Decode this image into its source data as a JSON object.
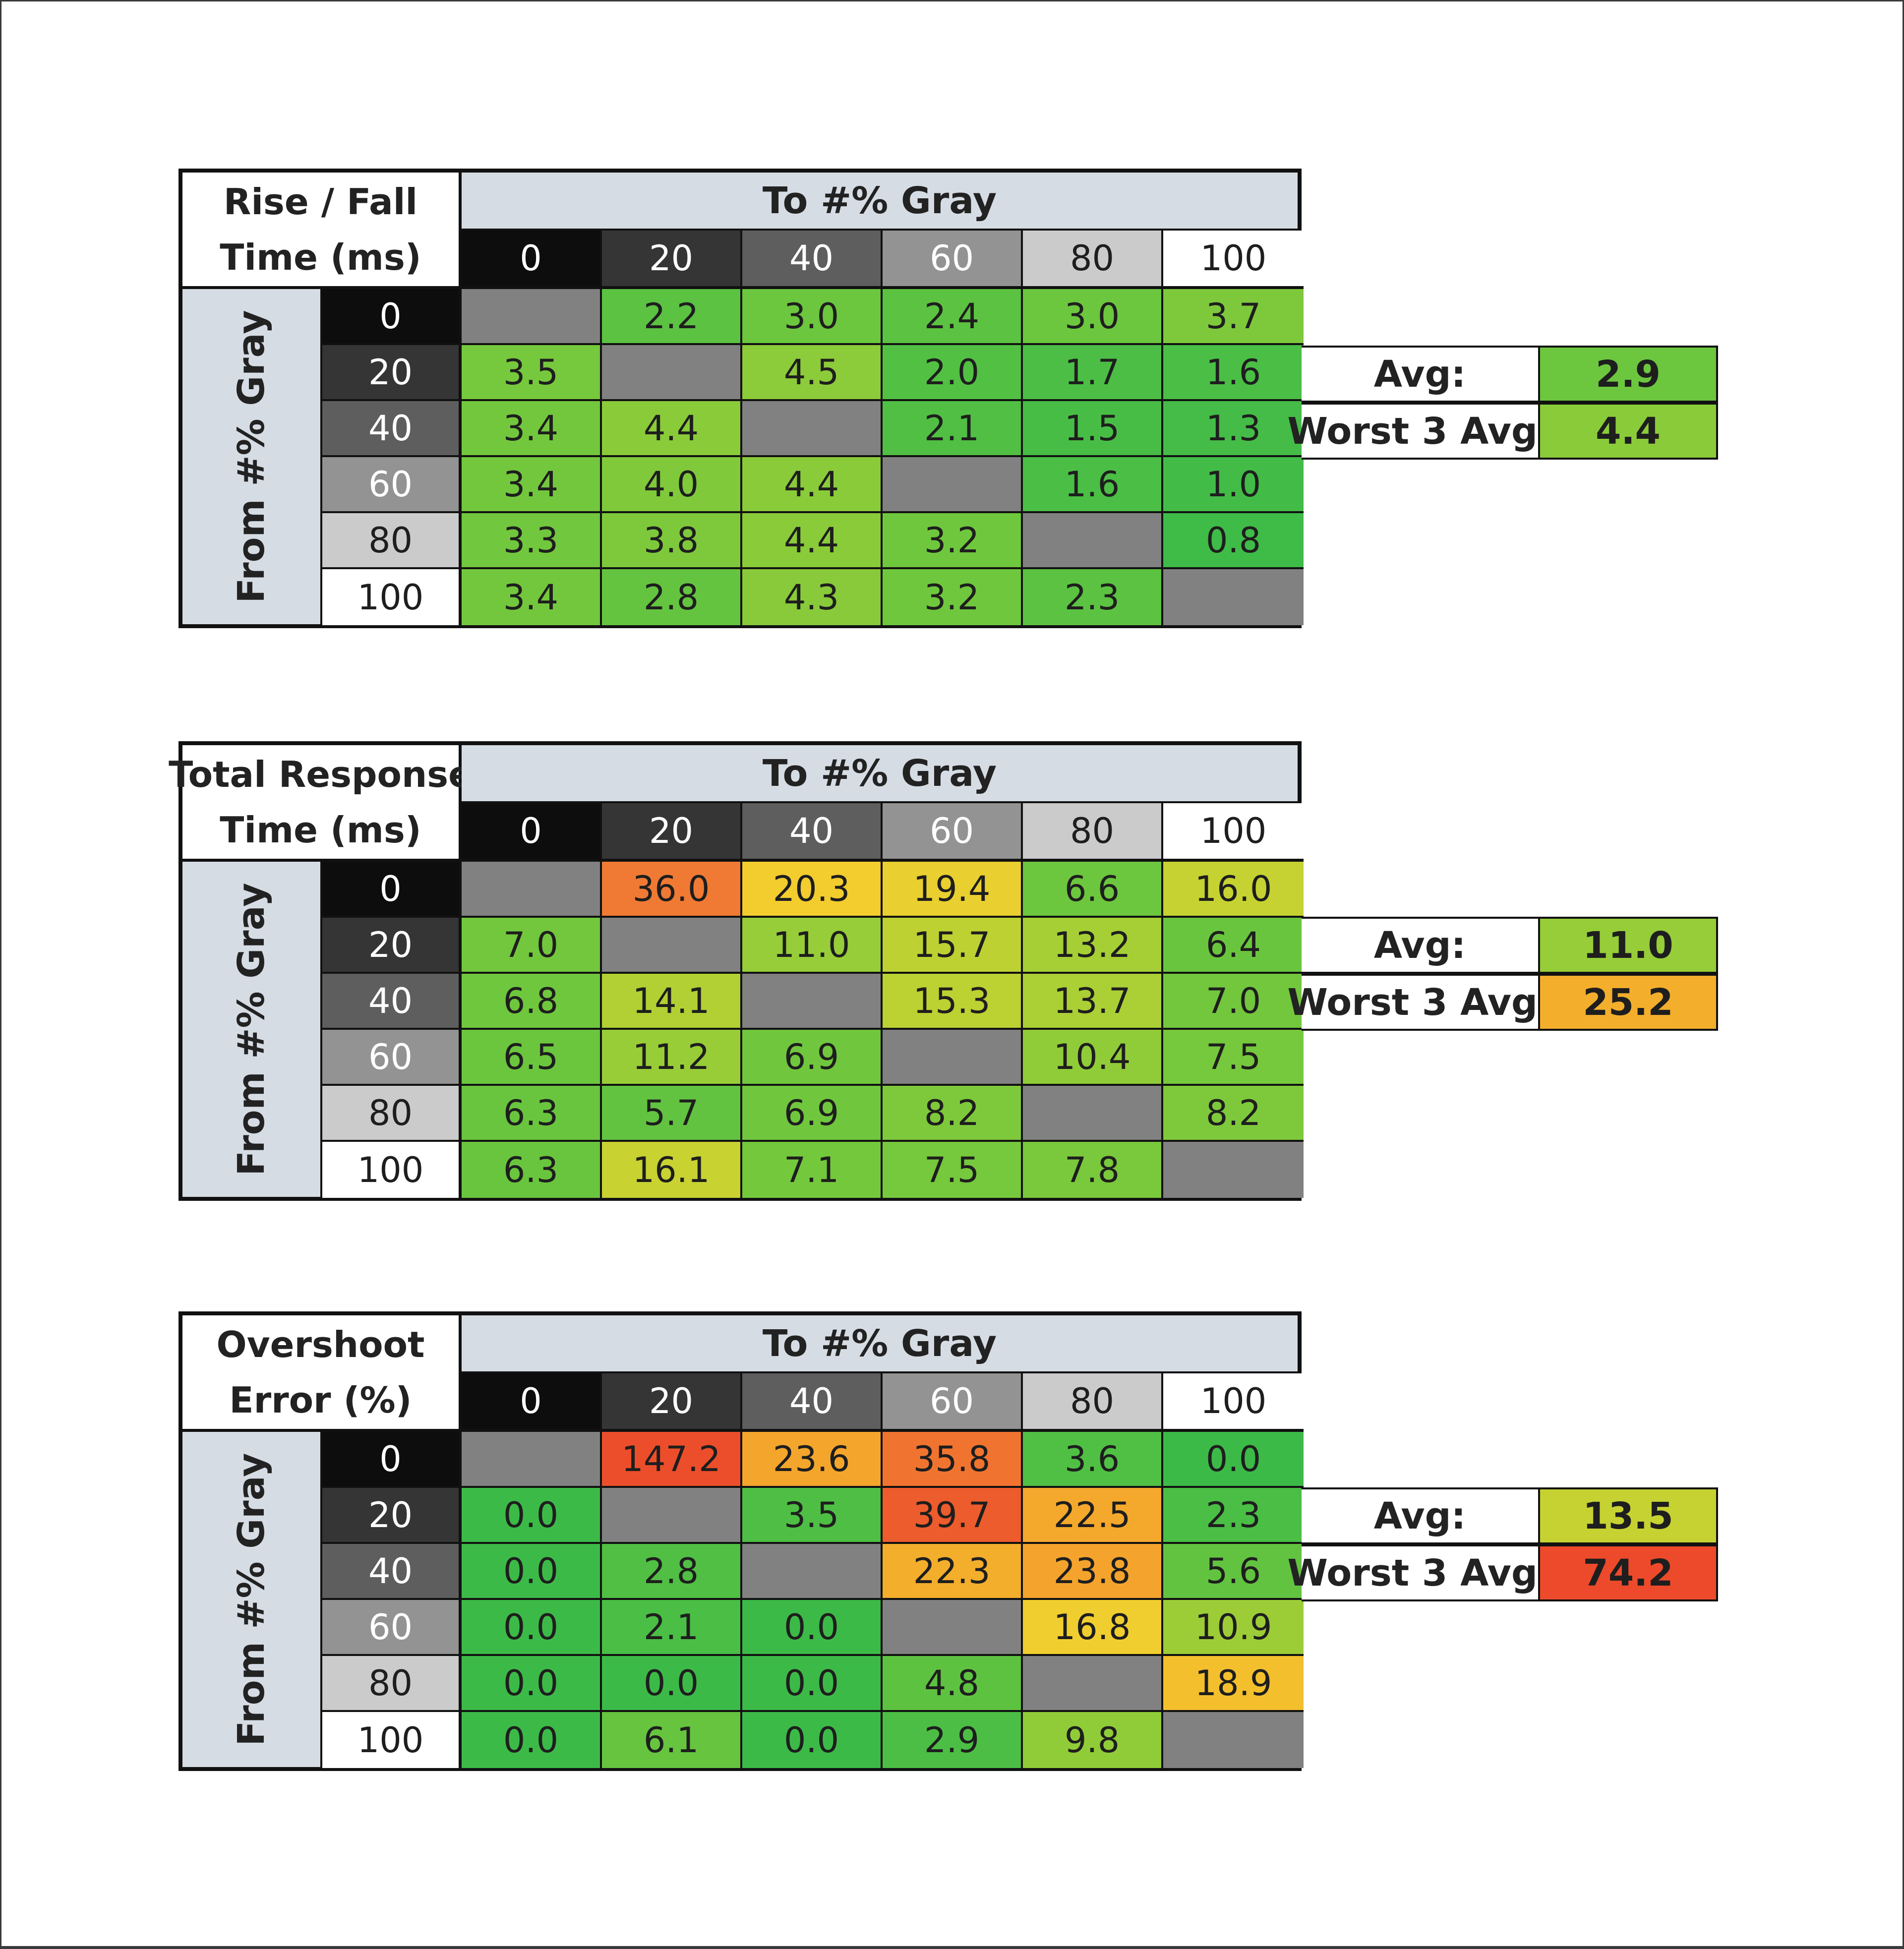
{
  "chart_data": [
    {
      "type": "heatmap",
      "title_lines": [
        "Rise / Fall",
        "Time (ms)"
      ],
      "x_title": "To #% Gray",
      "y_title": "From #% Gray",
      "levels": [
        "0",
        "20",
        "40",
        "60",
        "80",
        "100"
      ],
      "values": [
        [
          null,
          "2.2",
          "3.0",
          "2.4",
          "3.0",
          "3.7"
        ],
        [
          "3.5",
          null,
          "4.5",
          "2.0",
          "1.7",
          "1.6"
        ],
        [
          "3.4",
          "4.4",
          null,
          "2.1",
          "1.5",
          "1.3"
        ],
        [
          "3.4",
          "4.0",
          "4.4",
          null,
          "1.6",
          "1.0"
        ],
        [
          "3.3",
          "3.8",
          "4.4",
          "3.2",
          null,
          "0.8"
        ],
        [
          "3.4",
          "2.8",
          "4.3",
          "3.2",
          "2.3",
          null
        ]
      ],
      "colors": [
        [
          null,
          "#5bc242",
          "#6cc63e",
          "#5cc241",
          "#6cc63e",
          "#7dc93b"
        ],
        [
          "#76c83c",
          null,
          "#8ccb39",
          "#52c043",
          "#4cbe45",
          "#4abe45"
        ],
        [
          "#73c73d",
          "#8acb39",
          null,
          "#50bf44",
          "#48bd46",
          "#44bc47"
        ],
        [
          "#73c73d",
          "#80c93b",
          "#8acb39",
          null,
          "#4abe45",
          "#42bc47"
        ],
        [
          "#71c73d",
          "#7dc93b",
          "#8acb39",
          "#6fc73d",
          null,
          "#3fbb48"
        ],
        [
          "#73c73d",
          "#64c440",
          "#88ca3a",
          "#6fc73d",
          "#5cc241",
          null
        ]
      ],
      "stats": [
        {
          "label": "Avg:",
          "value": "2.9",
          "color": "#6cc63e"
        },
        {
          "label": "Worst 3 Avg:",
          "value": "4.4",
          "color": "#8acb39"
        }
      ]
    },
    {
      "type": "heatmap",
      "title_lines": [
        "Total Response",
        "Time (ms)"
      ],
      "x_title": "To #% Gray",
      "y_title": "From #% Gray",
      "levels": [
        "0",
        "20",
        "40",
        "60",
        "80",
        "100"
      ],
      "values": [
        [
          null,
          "36.0",
          "20.3",
          "19.4",
          "6.6",
          "16.0"
        ],
        [
          "7.0",
          null,
          "11.0",
          "15.7",
          "13.2",
          "6.4"
        ],
        [
          "6.8",
          "14.1",
          null,
          "15.3",
          "13.7",
          "7.0"
        ],
        [
          "6.5",
          "11.2",
          "6.9",
          null,
          "10.4",
          "7.5"
        ],
        [
          "6.3",
          "5.7",
          "6.9",
          "8.2",
          null,
          "8.2"
        ],
        [
          "6.3",
          "16.1",
          "7.1",
          "7.5",
          "7.8",
          null
        ]
      ],
      "colors": [
        [
          null,
          "#f07a33",
          "#f3cc2e",
          "#e9cf2f",
          "#6cc63e",
          "#c6d231"
        ],
        [
          "#72c73d",
          null,
          "#96cd38",
          "#bdd132",
          "#a6cf35",
          "#6ac53e"
        ],
        [
          "#6fc73d",
          "#b2d033",
          null,
          "#bcd132",
          "#aad035",
          "#72c73d"
        ],
        [
          "#6bc63e",
          "#98cd37",
          "#70c73d",
          null,
          "#90cc38",
          "#76c83c"
        ],
        [
          "#69c53e",
          "#62c340",
          "#70c73d",
          "#7ec93b",
          null,
          "#7ec93b"
        ],
        [
          "#69c53e",
          "#c8d231",
          "#74c83c",
          "#76c83c",
          "#7ac83c",
          null
        ]
      ],
      "stats": [
        {
          "label": "Avg:",
          "value": "11.0",
          "color": "#96cd38"
        },
        {
          "label": "Worst 3 Avg:",
          "value": "25.2",
          "color": "#f3ae2c"
        }
      ]
    },
    {
      "type": "heatmap",
      "title_lines": [
        "Overshoot",
        "Error (%)"
      ],
      "x_title": "To #% Gray",
      "y_title": "From #% Gray",
      "levels": [
        "0",
        "20",
        "40",
        "60",
        "80",
        "100"
      ],
      "values": [
        [
          null,
          "147.2",
          "23.6",
          "35.8",
          "3.6",
          "0.0"
        ],
        [
          "0.0",
          null,
          "3.5",
          "39.7",
          "22.5",
          "2.3"
        ],
        [
          "0.0",
          "2.8",
          null,
          "22.3",
          "23.8",
          "5.6"
        ],
        [
          "0.0",
          "2.1",
          "0.0",
          null,
          "16.8",
          "10.9"
        ],
        [
          "0.0",
          "0.0",
          "0.0",
          "4.8",
          null,
          "18.9"
        ],
        [
          "0.0",
          "6.1",
          "0.0",
          "2.9",
          "9.8",
          null
        ]
      ],
      "colors": [
        [
          null,
          "#ec4e2b",
          "#f4a62c",
          "#f07430",
          "#50c044",
          "#3cba48"
        ],
        [
          "#3cba48",
          null,
          "#4ebf44",
          "#ed5c2c",
          "#f4a82c",
          "#4abe45"
        ],
        [
          "#3cba48",
          "#50bf44",
          null,
          "#f3ae2c",
          "#f4a42c",
          "#62c340"
        ],
        [
          "#3cba48",
          "#4abe45",
          "#3cba48",
          null,
          "#f1ce2f",
          "#9ccd37"
        ],
        [
          "#3cba48",
          "#3cba48",
          "#3cba48",
          "#5ec241",
          null,
          "#f3bf2c"
        ],
        [
          "#3cba48",
          "#66c43f",
          "#3cba48",
          "#4cbe45",
          "#90cc38",
          null
        ]
      ],
      "stats": [
        {
          "label": "Avg:",
          "value": "13.5",
          "color": "#c6d231"
        },
        {
          "label": "Worst 3 Avg:",
          "value": "74.2",
          "color": "#ec4a2b"
        }
      ]
    }
  ],
  "level_colors": {
    "bg": [
      "#0d0d0d",
      "#353535",
      "#5e5e5e",
      "#939393",
      "#cbcbcb",
      "#ffffff"
    ],
    "fg": [
      "#ffffff",
      "#ffffff",
      "#ffffff",
      "#ffffff",
      "#1e1e1e",
      "#1e1e1e"
    ]
  },
  "diagonal_color": "#818181"
}
